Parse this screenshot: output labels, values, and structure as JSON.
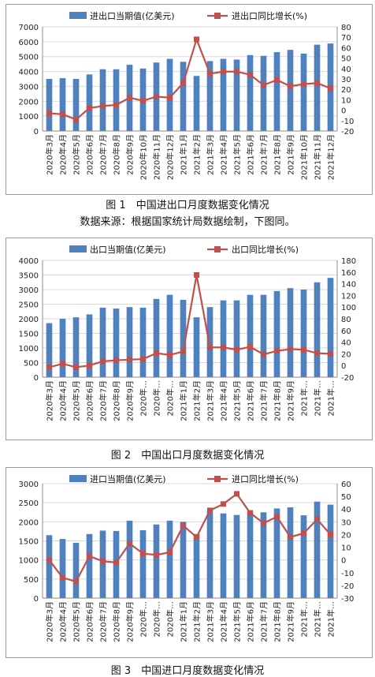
{
  "charts": [
    {
      "caption": "图 1　中国进出口月度数据变化情况",
      "note": "数据来源：根据国家统计局数据绘制，下图同。",
      "chart_data": {
        "type": "bar",
        "categories": [
          "2020年3月",
          "2020年4月",
          "2020年5月",
          "2020年6月",
          "2020年7月",
          "2020年8月",
          "2020年9月",
          "2020年10月",
          "2020年11月",
          "2020年12月",
          "2021年1月",
          "2021年2月",
          "2021年3月",
          "2021年4月",
          "2021年5月",
          "2021年6月",
          "2021年7月",
          "2021年8月",
          "2021年9月",
          "2021年10月",
          "2021年11月",
          "2021年12月"
        ],
        "series": [
          {
            "name": "进出口当期值(亿美元)",
            "type": "bar",
            "axis": "left",
            "values": [
              3500,
              3550,
              3500,
              3800,
              4150,
              4150,
              4450,
              4200,
              4600,
              4850,
              4650,
              3700,
              4700,
              4850,
              4800,
              5100,
              5050,
              5300,
              5450,
              5200,
              5800,
              5880
            ]
          },
          {
            "name": "进出口同比增长(%)",
            "type": "line",
            "axis": "right",
            "values": [
              -3,
              -4,
              -9,
              2,
              4,
              5,
              12,
              9,
              13,
              12,
              26,
              68,
              35,
              37,
              37,
              34,
              24,
              29,
              23,
              25,
              26,
              21
            ]
          }
        ],
        "ylim_left": [
          0,
          7000
        ],
        "ylim_right": [
          -20,
          80
        ],
        "left_ticks": [
          0,
          1000,
          2000,
          3000,
          4000,
          5000,
          6000,
          7000
        ],
        "right_ticks": [
          -20,
          -10,
          0,
          10,
          20,
          30,
          40,
          50,
          60,
          70,
          80
        ],
        "bar_color": "#4e81bd",
        "line_color": "#c0504d",
        "legend": "top"
      }
    },
    {
      "caption": "图 2　中国出口月度数据变化情况",
      "chart_data": {
        "type": "bar",
        "categories": [
          "2020年3月",
          "2020年4月",
          "2020年5月",
          "2020年6月",
          "2020年7月",
          "2020年8月",
          "2020年9月",
          "2020年…",
          "2020年…",
          "2020年…",
          "2021年1月",
          "2021年2月",
          "2021年3月",
          "2021年4月",
          "2021年5月",
          "2021年6月",
          "2021年7月",
          "2021年8月",
          "2021年9月",
          "2021年…",
          "2021年…",
          "2021年…"
        ],
        "series": [
          {
            "name": "出口当期值(亿美元)",
            "type": "bar",
            "axis": "left",
            "values": [
              1850,
              2000,
              2050,
              2150,
              2380,
              2350,
              2400,
              2380,
              2680,
              2820,
              2650,
              2050,
              2400,
              2630,
              2630,
              2820,
              2820,
              2950,
              3050,
              3000,
              3250,
              3400
            ]
          },
          {
            "name": "出口同比增长(%)",
            "type": "line",
            "axis": "right",
            "values": [
              -3,
              3,
              -3,
              0,
              7,
              9,
              10,
              11,
              21,
              18,
              24,
              155,
              31,
              31,
              27,
              32,
              19,
              25,
              28,
              27,
              21,
              20
            ]
          }
        ],
        "ylim_left": [
          0,
          4000
        ],
        "ylim_right": [
          -20,
          180
        ],
        "left_ticks": [
          0,
          500,
          1000,
          1500,
          2000,
          2500,
          3000,
          3500,
          4000
        ],
        "right_ticks": [
          -20,
          0,
          20,
          40,
          60,
          80,
          100,
          120,
          140,
          160,
          180
        ],
        "bar_color": "#4e81bd",
        "line_color": "#c0504d",
        "legend": "top"
      }
    },
    {
      "caption": "图 3　中国进口月度数据变化情况",
      "chart_data": {
        "type": "bar",
        "categories": [
          "2020年3月",
          "2020年4月",
          "2020年5月",
          "2020年6月",
          "2020年7月",
          "2020年8月",
          "2020年9月",
          "2020年…",
          "2020年…",
          "2020年…",
          "2021年1月",
          "2021年2月",
          "2021年3月",
          "2021年4月",
          "2021年5月",
          "2021年6月",
          "2021年7月",
          "2021年8月",
          "2021年9月",
          "2021年…",
          "2021年…",
          "2021年…"
        ],
        "series": [
          {
            "name": "进口当期值(亿美元)",
            "type": "bar",
            "axis": "left",
            "values": [
              1650,
              1550,
              1450,
              1680,
              1770,
              1760,
              2030,
              1780,
              1930,
              2030,
              2000,
              1680,
              2300,
              2220,
              2180,
              2270,
              2250,
              2350,
              2380,
              2170,
              2530,
              2450
            ]
          },
          {
            "name": "进口同比增长(%)",
            "type": "line",
            "axis": "right",
            "values": [
              0,
              -14,
              -17,
              3,
              -1,
              -2,
              13,
              5,
              4,
              6,
              27,
              18,
              39,
              44,
              52,
              37,
              29,
              34,
              18,
              21,
              32,
              20
            ]
          }
        ],
        "ylim_left": [
          0,
          3000
        ],
        "ylim_right": [
          -30,
          60
        ],
        "left_ticks": [
          0,
          500,
          1000,
          1500,
          2000,
          2500,
          3000
        ],
        "right_ticks": [
          -30,
          -20,
          -10,
          0,
          10,
          20,
          30,
          40,
          50,
          60
        ],
        "bar_color": "#4e81bd",
        "line_color": "#c0504d",
        "legend": "top"
      }
    }
  ]
}
